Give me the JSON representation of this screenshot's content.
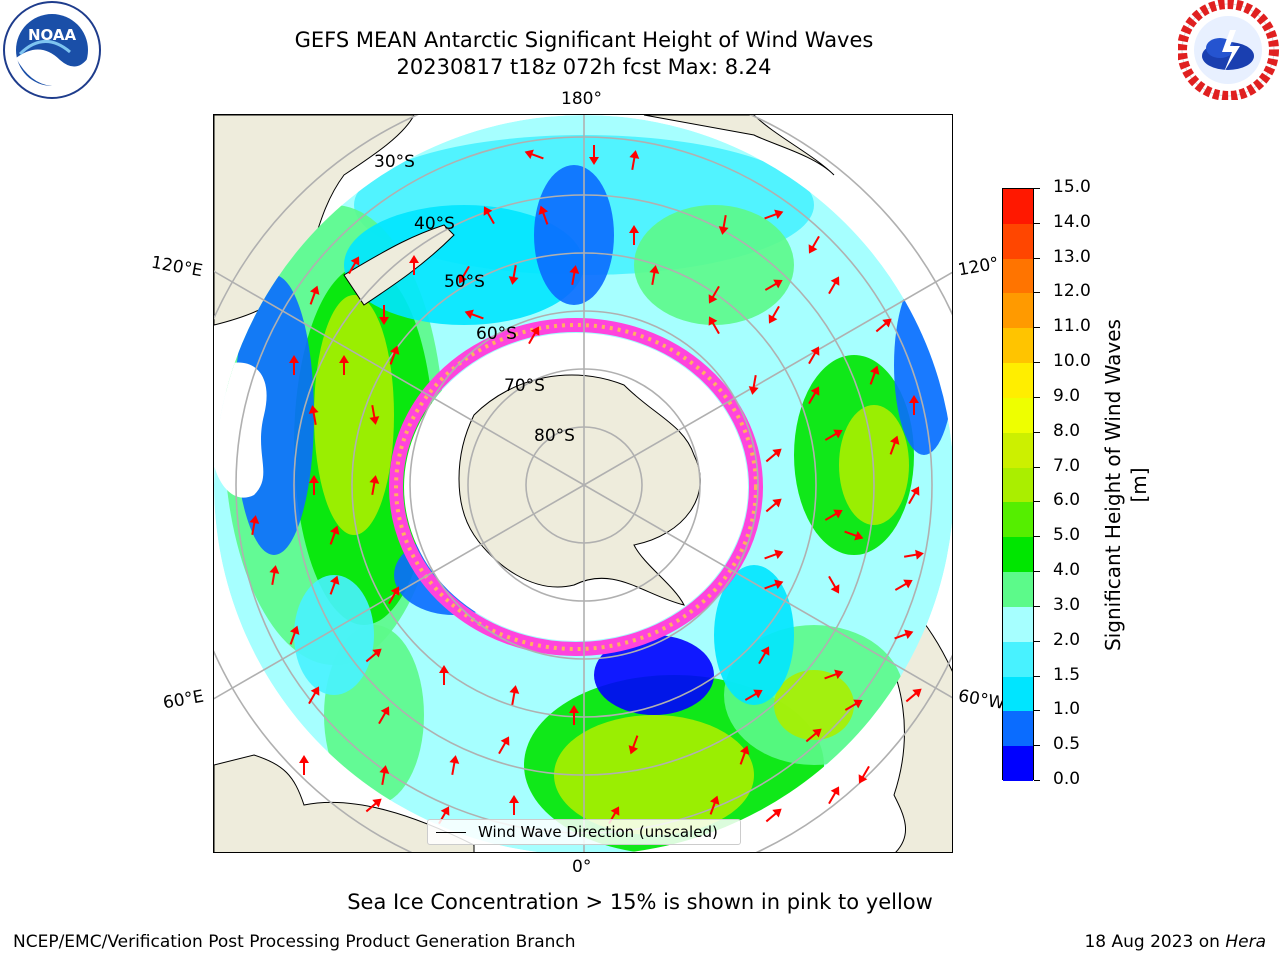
{
  "header": {
    "title_line1": "GEFS MEAN Antarctic Significant Height of Wind Waves",
    "title_line2": "20230817 t18z 072h fcst   Max: 8.24"
  },
  "logos": {
    "noaa": "NOAA",
    "noaa_ring": "NATIONAL OCEANIC AND ATMOSPHERIC ADMINISTRATION · U.S. DEPARTMENT OF COMMERCE",
    "nws_ring": "NATIONAL WEATHER SERVICE"
  },
  "map": {
    "projection": "south polar stereographic",
    "longitude_labels": [
      "180°",
      "120°E",
      "120°",
      "60°E",
      "60°W",
      "0°"
    ],
    "latitude_labels": [
      "30°S",
      "40°S",
      "50°S",
      "60°S",
      "70°S",
      "80°S"
    ],
    "legend_label": "Wind Wave Direction (unscaled)",
    "colors": {
      "land": "#eeecdc",
      "grid": "#b0b0b0",
      "arrows": "#ff0000",
      "sea_ice": "#ff44dd"
    }
  },
  "colorbar": {
    "label": "Significant Height of Wind Waves [m]",
    "ticks": [
      "0.0",
      "0.5",
      "1.0",
      "1.5",
      "2.0",
      "3.0",
      "4.0",
      "5.0",
      "6.0",
      "7.0",
      "8.0",
      "9.0",
      "10.0",
      "11.0",
      "12.0",
      "13.0",
      "14.0",
      "15.0"
    ],
    "colors": [
      "#0000ff",
      "#0a6cff",
      "#00e5ff",
      "#48f2ff",
      "#a6ffff",
      "#5cfa8a",
      "#00e600",
      "#55ee00",
      "#aaee00",
      "#ccf000",
      "#eeff00",
      "#ffee00",
      "#ffc400",
      "#ff9a00",
      "#ff7400",
      "#ff4600",
      "#ff1800"
    ]
  },
  "footer": {
    "note": "Sea Ice Concentration > 15% is shown in pink to yellow",
    "credit": "NCEP/EMC/Verification Post Processing Product Generation Branch",
    "date_prefix": "18 Aug 2023 on ",
    "machine": "Hera"
  }
}
